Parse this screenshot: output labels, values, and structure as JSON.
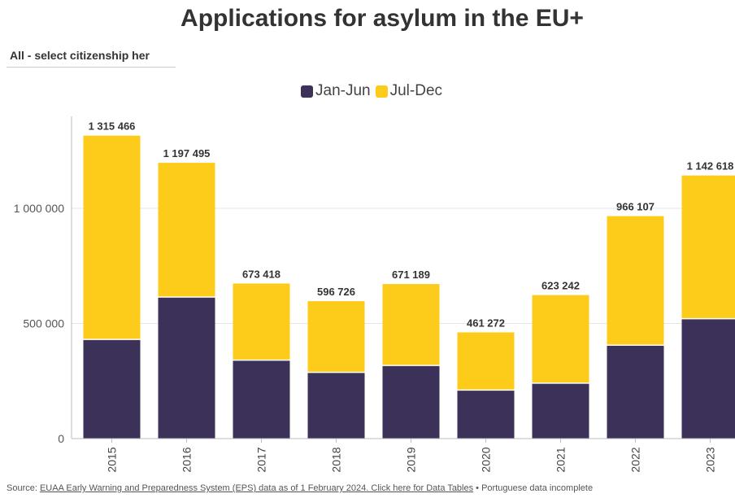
{
  "title": "Applications for asylum in the EU+",
  "dropdown": {
    "selected": "All - select citizenship her"
  },
  "legend": [
    {
      "label": "Jan-Jun",
      "color": "#3c3159"
    },
    {
      "label": "Jul-Dec",
      "color": "#fdcb1a"
    }
  ],
  "source": {
    "prefix": "Source: ",
    "link": "EUAA Early Warning and Preparedness System (EPS) data as of 1 February 2024. Click here for Data Tables",
    "suffix": " • Portuguese data incomplete"
  },
  "chart_data": {
    "type": "bar",
    "stacked": true,
    "categories": [
      "2015",
      "2016",
      "2017",
      "2018",
      "2019",
      "2020",
      "2021",
      "2022",
      "2023"
    ],
    "series": [
      {
        "name": "Jan-Jun",
        "color": "#3c3159",
        "values": [
          428000,
          612000,
          338000,
          285000,
          315000,
          208000,
          238000,
          403000,
          518000
        ]
      },
      {
        "name": "Jul-Dec",
        "color": "#fdcb1a",
        "values": [
          887466,
          585495,
          335418,
          311726,
          356189,
          253272,
          385242,
          563107,
          624618
        ]
      }
    ],
    "totals": [
      1315466,
      1197495,
      673418,
      596726,
      671189,
      461272,
      623242,
      966107,
      1142618
    ],
    "total_labels": [
      "1 315 466",
      "1 197 495",
      "673 418",
      "596 726",
      "671 189",
      "461 272",
      "623 242",
      "966 107",
      "1 142 618"
    ],
    "y_ticks": [
      0,
      500000,
      1000000
    ],
    "y_tick_labels": [
      "0",
      "500 000",
      "1 000 000"
    ],
    "ylim": [
      0,
      1350000
    ],
    "grid": true,
    "legend_position": "top-center"
  }
}
